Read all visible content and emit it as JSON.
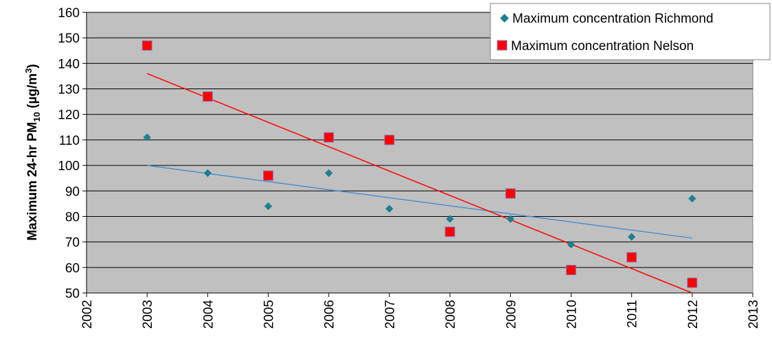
{
  "chart_data": {
    "type": "scatter",
    "title": "",
    "xlabel": "",
    "ylabel": {
      "prefix": "Maximum 24-hr PM",
      "sub": "10",
      "unit_open": " (µg/m",
      "unit_sup": "3",
      "unit_close": ")"
    },
    "xlim": [
      2002,
      2013
    ],
    "ylim": [
      50,
      160
    ],
    "xticks": [
      "2002",
      "2003",
      "2004",
      "2005",
      "2006",
      "2007",
      "2008",
      "2009",
      "2010",
      "2011",
      "2012",
      "2013"
    ],
    "yticks": [
      "50",
      "60",
      "70",
      "80",
      "90",
      "100",
      "110",
      "120",
      "130",
      "140",
      "150",
      "160"
    ],
    "grid": "horizontal",
    "plot_background": "#c0c0c0",
    "legend_position": "top-right",
    "series": [
      {
        "name": "Maximum concentration Richmond",
        "marker": "diamond",
        "color": "#1f7f8f",
        "x": [
          2003,
          2004,
          2005,
          2006,
          2007,
          2008,
          2009,
          2010,
          2011,
          2012
        ],
        "y": [
          111,
          97,
          84,
          97,
          83,
          79,
          79,
          69,
          72,
          87
        ],
        "trendline": {
          "color": "#4a90d0",
          "from": [
            2003,
            100
          ],
          "to": [
            2012,
            71.5
          ]
        }
      },
      {
        "name": "Maximum concentration Nelson",
        "marker": "square",
        "color": "#ff0000",
        "x": [
          2003,
          2004,
          2005,
          2006,
          2007,
          2008,
          2009,
          2010,
          2011,
          2012
        ],
        "y": [
          147,
          127,
          96,
          111,
          110,
          74,
          89,
          59,
          64,
          54
        ],
        "trendline": {
          "color": "#ff0000",
          "from": [
            2003,
            136
          ],
          "to": [
            2012,
            50
          ]
        }
      }
    ]
  }
}
